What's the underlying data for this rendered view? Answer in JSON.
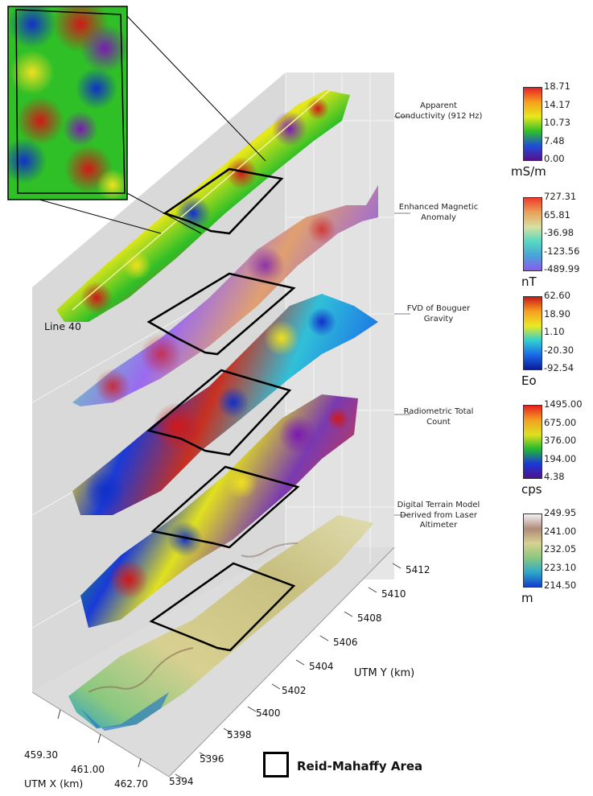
{
  "layers": [
    {
      "label": "Apparent Conductivity (912 Hz)",
      "unit": "mS/m",
      "ticks": [
        "18.71",
        "14.17",
        "10.73",
        "7.48",
        "0.00"
      ],
      "colors": [
        "#e8202a",
        "#f6a11c",
        "#e9e81a",
        "#2fbf27",
        "#1f4fd8",
        "#5a0f8f"
      ]
    },
    {
      "label": "Enhanced Magnetic Anomaly",
      "unit": "nT",
      "ticks": [
        "727.31",
        "65.81",
        "-36.98",
        "-123.56",
        "-489.99"
      ],
      "colors": [
        "#f23a2a",
        "#e8a25a",
        "#d8e0a2",
        "#56d8c0",
        "#4aa2d8",
        "#8a5af0"
      ]
    },
    {
      "label": "FVD of Bouguer Gravity",
      "unit": "Eo",
      "ticks": [
        "62.60",
        "18.90",
        "1.10",
        "-20.30",
        "-92.54"
      ],
      "colors": [
        "#c81818",
        "#f7a020",
        "#eaea20",
        "#30d0d0",
        "#1a6ae8",
        "#0a1a9a"
      ]
    },
    {
      "label": "Radiometric Total Count",
      "unit": "cps",
      "ticks": [
        "1495.00",
        "675.00",
        "376.00",
        "194.00",
        "4.38"
      ],
      "colors": [
        "#e82020",
        "#f2a020",
        "#e0e020",
        "#22b830",
        "#1a3ad8",
        "#501090"
      ]
    },
    {
      "label": "Digital Terrain Model Derived from Laser Altimeter",
      "unit": "m",
      "ticks": [
        "249.95",
        "241.00",
        "232.05",
        "223.10",
        "214.50"
      ],
      "colors": [
        "#f2f2f2",
        "#b08a78",
        "#d8d090",
        "#8ac880",
        "#30a8c8",
        "#1040d0"
      ]
    }
  ],
  "line_label": "Line 40",
  "y_axis": {
    "title": "UTM Y (km)",
    "ticks": [
      "5412",
      "5410",
      "5408",
      "5406",
      "5404",
      "5402",
      "5400",
      "5398",
      "5396",
      "5394"
    ]
  },
  "x_axis": {
    "title": "UTM X (km)",
    "ticks": [
      "459.30",
      "461.00",
      "462.70"
    ]
  },
  "legend": {
    "label": "Reid-Mahaffy Area"
  }
}
